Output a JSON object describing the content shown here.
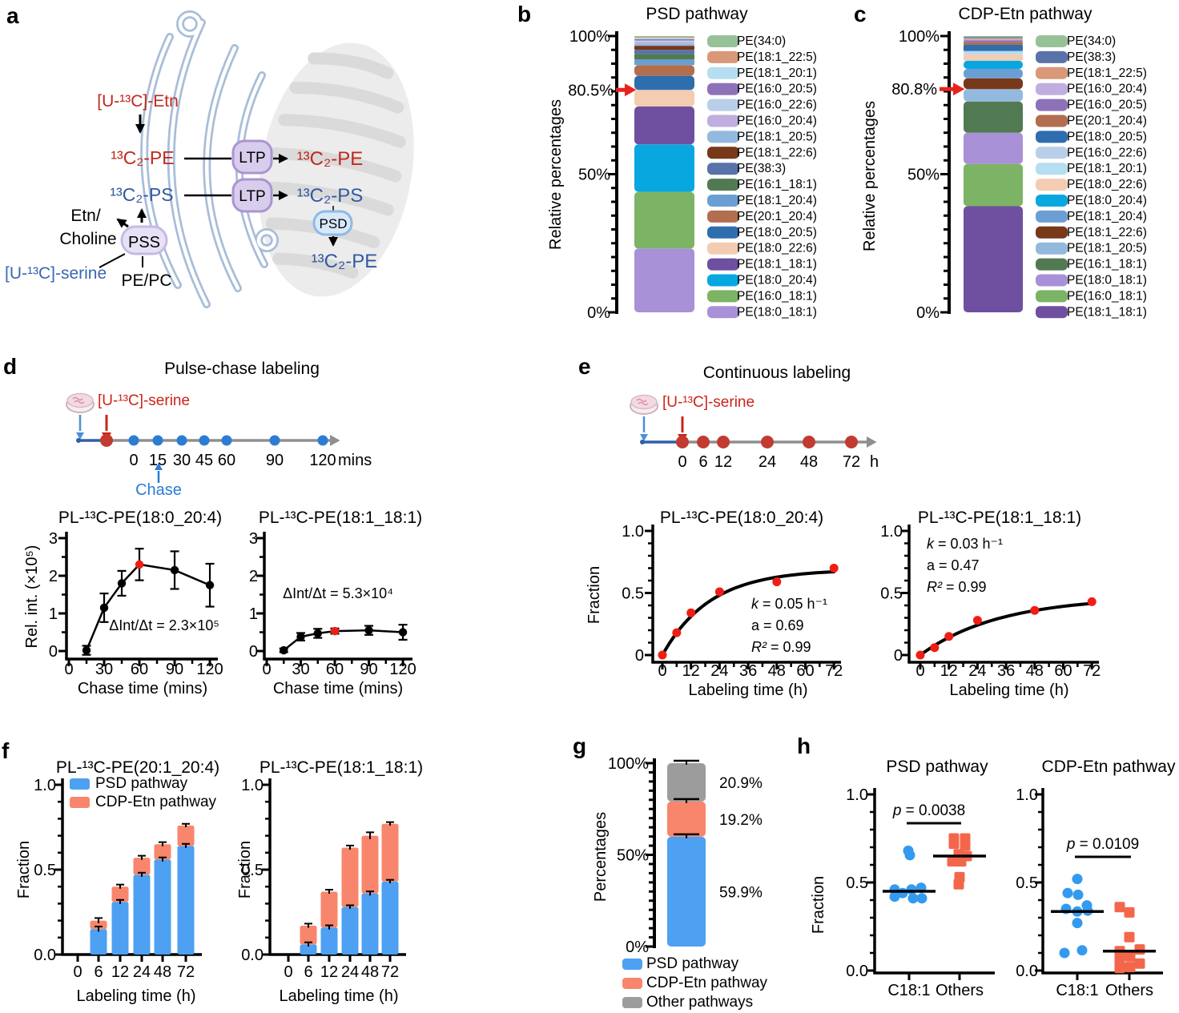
{
  "letters": {
    "a": "a",
    "b": "b",
    "c": "c",
    "d": "d",
    "e": "e",
    "f": "f",
    "g": "g",
    "h": "h"
  },
  "panel_a": {
    "labels": {
      "etn_substrate": "[U-¹³C]-Etn",
      "pe_er": "¹³C₂-PE",
      "ps_er": "¹³C₂-PS",
      "etn_out_1": "Etn/",
      "etn_out_2": "Choline",
      "pss_enzyme": "PSS",
      "serine_substrate": "[U-¹³C]-serine",
      "pe_pc": "PE/PC",
      "ltp_top": "LTP",
      "ltp_bottom": "LTP",
      "pe_mito": "¹³C₂-PE",
      "ps_mito": "¹³C₂-PS",
      "psd_enzyme": "PSD",
      "pe_mito_product": "¹³C₂-PE"
    },
    "colors": {
      "red": "#c0291e",
      "blue": "#33599f",
      "serine_blue": "#3a67b1"
    }
  },
  "timelines": {
    "pulse_chase": {
      "title": "Pulse-chase labeling",
      "reagent": "[U-¹³C]-serine",
      "chase_label": "Chase",
      "tick_labels": [
        "0",
        "15",
        "30",
        "45",
        "60",
        "90",
        "120"
      ],
      "unit": "mins"
    },
    "continuous": {
      "title": "Continuous labeling",
      "reagent": "[U-¹³C]-serine",
      "tick_labels": [
        "0",
        "6",
        "12",
        "24",
        "48",
        "72"
      ],
      "unit": "h"
    }
  },
  "chart_data": [
    {
      "id": "panel_b",
      "type": "bar",
      "variant": "stacked_single",
      "title": "PSD pathway",
      "ylabel": "Relative percentages",
      "yticks": [
        "0%",
        "50%",
        "100%"
      ],
      "arrow": {
        "value": 80.5,
        "label": "80.5%",
        "color": "#e8231c"
      },
      "segments_bottom_to_top": [
        {
          "label": "PE(18:0_18:1)",
          "value": 23.1,
          "color": "#a891d6"
        },
        {
          "label": "PE(16:0_18:1)",
          "value": 20.5,
          "color": "#7cb364"
        },
        {
          "label": "PE(18:0_20:4)",
          "value": 17.2,
          "color": "#08a7e0"
        },
        {
          "label": "PE(18:1_18:1)",
          "value": 13.7,
          "color": "#6f4f9f"
        },
        {
          "label": "PE(18:0_22:6)",
          "value": 6.0,
          "color": "#f3ccb1"
        },
        {
          "label": "PE(18:0_20:5)",
          "value": 5.1,
          "color": "#2e6eae"
        },
        {
          "label": "PE(20:1_20:4)",
          "value": 3.9,
          "color": "#b26e4e"
        },
        {
          "label": "PE(18:1_20:4)",
          "value": 2.0,
          "color": "#6b9fd4"
        },
        {
          "label": "PE(16:1_18:1)",
          "value": 2.0,
          "color": "#527a52"
        },
        {
          "label": "PE(38:3)",
          "value": 1.5,
          "color": "#5a72aa"
        },
        {
          "label": "PE(18:1_22:6)",
          "value": 1.5,
          "color": "#77391a"
        },
        {
          "label": "PE(18:1_20:5)",
          "value": 0.8,
          "color": "#93bade"
        },
        {
          "label": "PE(16:0_20:4)",
          "value": 0.6,
          "color": "#bfaede"
        },
        {
          "label": "PE(16:0_22:6)",
          "value": 0.5,
          "color": "#b9cfe9"
        },
        {
          "label": "PE(16:0_20:5)",
          "value": 0.5,
          "color": "#8d72b8"
        },
        {
          "label": "PE(18:1_20:1)",
          "value": 0.4,
          "color": "#b5dff0"
        },
        {
          "label": "PE(18:1_22:5)",
          "value": 0.4,
          "color": "#d99878"
        },
        {
          "label": "PE(34:0)",
          "value": 0.3,
          "color": "#97c297"
        }
      ]
    },
    {
      "id": "panel_c",
      "type": "bar",
      "variant": "stacked_single",
      "title": "CDP-Etn pathway",
      "ylabel": "Relative percentages",
      "yticks": [
        "0%",
        "50%",
        "100%"
      ],
      "arrow": {
        "value": 80.8,
        "label": "80.8%",
        "color": "#e8231c"
      },
      "segments_bottom_to_top": [
        {
          "label": "PE(18:1_18:1)",
          "value": 38.4,
          "color": "#6f4f9f"
        },
        {
          "label": "PE(16:0_18:1)",
          "value": 15.3,
          "color": "#7cb364"
        },
        {
          "label": "PE(18:0_18:1)",
          "value": 11.3,
          "color": "#a891d6"
        },
        {
          "label": "PE(16:1_18:1)",
          "value": 11.3,
          "color": "#527a52"
        },
        {
          "label": "PE(18:1_20:5)",
          "value": 4.5,
          "color": "#93bade"
        },
        {
          "label": "PE(18:1_22:6)",
          "value": 3.9,
          "color": "#77391a"
        },
        {
          "label": "PE(18:1_20:4)",
          "value": 3.4,
          "color": "#6b9fd4"
        },
        {
          "label": "PE(18:0_20:4)",
          "value": 3.0,
          "color": "#08a7e0"
        },
        {
          "label": "PE(18:0_22:6)",
          "value": 2.2,
          "color": "#f3ccb1"
        },
        {
          "label": "PE(18:1_20:1)",
          "value": 0.8,
          "color": "#b5dff0"
        },
        {
          "label": "PE(16:0_22:6)",
          "value": 0.5,
          "color": "#b9cfe9"
        },
        {
          "label": "PE(18:0_20:5)",
          "value": 2.2,
          "color": "#2e6eae"
        },
        {
          "label": "PE(20:1_20:4)",
          "value": 1.0,
          "color": "#b26e4e"
        },
        {
          "label": "PE(16:0_20:5)",
          "value": 0.6,
          "color": "#8d72b8"
        },
        {
          "label": "PE(16:0_20:4)",
          "value": 0.5,
          "color": "#bfaede"
        },
        {
          "label": "PE(18:1_22:5)",
          "value": 0.4,
          "color": "#d99878"
        },
        {
          "label": "PE(38:3)",
          "value": 0.4,
          "color": "#5a72aa"
        },
        {
          "label": "PE(34:0)",
          "value": 0.3,
          "color": "#97c297"
        }
      ]
    },
    {
      "id": "panel_d_left",
      "type": "line",
      "title": "PL-¹³C-PE(18:0_20:4)",
      "ylabel": "Rel. int. (×10⁵)",
      "xlabel": "Chase time (mins)",
      "xticks": [
        0,
        30,
        60,
        90,
        120
      ],
      "yticks": [
        0,
        1,
        2,
        3
      ],
      "ylim": [
        0,
        3
      ],
      "x": [
        15,
        30,
        45,
        60,
        90,
        120
      ],
      "y": [
        0.02,
        1.15,
        1.8,
        2.3,
        2.15,
        1.75
      ],
      "err": [
        0.12,
        0.38,
        0.33,
        0.42,
        0.5,
        0.57
      ],
      "highlight_index": 3,
      "annotation": "ΔInt/Δt = 2.3×10⁵"
    },
    {
      "id": "panel_d_right",
      "type": "line",
      "title": "PL-¹³C-PE(18:1_18:1)",
      "ylabel": "",
      "xlabel": "Chase time (mins)",
      "xticks": [
        0,
        30,
        60,
        90,
        120
      ],
      "yticks": [
        0,
        1,
        2,
        3
      ],
      "ylim": [
        0,
        3
      ],
      "x": [
        15,
        30,
        45,
        60,
        90,
        120
      ],
      "y": [
        0.02,
        0.38,
        0.47,
        0.53,
        0.55,
        0.5
      ],
      "err": [
        0.05,
        0.1,
        0.12,
        0.07,
        0.12,
        0.2
      ],
      "highlight_index": 3,
      "annotation": "ΔInt/Δt = 5.3×10⁴"
    },
    {
      "id": "panel_e_left",
      "type": "scatter_fit",
      "title": "PL-¹³C-PE(18:0_20:4)",
      "ylabel": "Fraction",
      "xlabel": "Labeling time (h)",
      "xticks": [
        0,
        12,
        24,
        36,
        48,
        60,
        72
      ],
      "ytick_labels": [
        "0",
        "0.5",
        "1.0"
      ],
      "x": [
        0,
        6,
        12,
        24,
        48,
        72
      ],
      "y": [
        0.0,
        0.18,
        0.34,
        0.51,
        0.59,
        0.7
      ],
      "fit": {
        "k": 0.05,
        "a": 0.69
      },
      "annotation_lines": [
        "k = 0.05 h⁻¹",
        "a = 0.69",
        "R² = 0.99"
      ]
    },
    {
      "id": "panel_e_right",
      "type": "scatter_fit",
      "title": "PL-¹³C-PE(18:1_18:1)",
      "ylabel": "",
      "xlabel": "Labeling time (h)",
      "xticks": [
        0,
        12,
        24,
        36,
        48,
        60,
        72
      ],
      "ytick_labels": [
        "0",
        "0.5",
        "1.0"
      ],
      "x": [
        0,
        6,
        12,
        24,
        48,
        72
      ],
      "y": [
        0.0,
        0.06,
        0.15,
        0.28,
        0.36,
        0.43
      ],
      "fit": {
        "k": 0.03,
        "a": 0.47
      },
      "annotation_lines": [
        "k = 0.03 h⁻¹",
        "a = 0.47",
        "R² = 0.99"
      ]
    },
    {
      "id": "panel_f_left",
      "type": "stacked_bars",
      "title": "PL-¹³C-PE(20:1_20:4)",
      "ylabel": "Fraction",
      "xlabel": "Labeling time (h)",
      "categories": [
        "0",
        "6",
        "12",
        "24",
        "48",
        "72"
      ],
      "ytick_labels": [
        "0.0",
        "0.5",
        "1.0"
      ],
      "series": [
        {
          "name": "PSD pathway",
          "color": "#4da0f2",
          "values": [
            0,
            0.15,
            0.31,
            0.47,
            0.56,
            0.64
          ],
          "err": [
            0,
            0.015,
            0.012,
            0.012,
            0.012,
            0.012
          ]
        },
        {
          "name": "CDP-Etn pathway",
          "color": "#f8866c",
          "values": [
            0,
            0.05,
            0.09,
            0.1,
            0.09,
            0.12
          ],
          "err": [
            0,
            0.015,
            0.012,
            0.012,
            0.012,
            0.01
          ]
        }
      ],
      "show_legend": true
    },
    {
      "id": "panel_f_right",
      "type": "stacked_bars",
      "title": "PL-¹³C-PE(18:1_18:1)",
      "ylabel": "Fraction",
      "xlabel": "Labeling time (h)",
      "categories": [
        "0",
        "6",
        "12",
        "24",
        "48",
        "72"
      ],
      "ytick_labels": [
        "0.0",
        "0.5",
        "1.0"
      ],
      "series": [
        {
          "name": "PSD pathway",
          "color": "#4da0f2",
          "values": [
            0,
            0.06,
            0.16,
            0.28,
            0.36,
            0.43
          ],
          "err": [
            0,
            0.012,
            0.012,
            0.01,
            0.012,
            0.01
          ]
        },
        {
          "name": "CDP-Etn pathway",
          "color": "#f8866c",
          "values": [
            0,
            0.11,
            0.21,
            0.35,
            0.34,
            0.34
          ],
          "err": [
            0,
            0.012,
            0.012,
            0.012,
            0.02,
            0.01
          ]
        }
      ],
      "show_legend": false
    },
    {
      "id": "panel_g",
      "type": "bar",
      "variant": "stacked_single",
      "title": "",
      "ylabel": "Percentages",
      "yticks": [
        "0%",
        "50%",
        "100%"
      ],
      "show_value_labels": true,
      "whiskers": true,
      "legend_below": true,
      "segments_bottom_to_top": [
        {
          "name": "PSD pathway",
          "label": "59.9%",
          "value": 59.9,
          "color": "#4da0f2"
        },
        {
          "name": "CDP-Etn pathway",
          "label": "19.2%",
          "value": 19.2,
          "color": "#f8866c"
        },
        {
          "name": "Other pathways",
          "label": "20.9%",
          "value": 20.9,
          "color": "#9c9c9c"
        }
      ]
    },
    {
      "id": "panel_h_left",
      "type": "dot_groups",
      "title": "PSD pathway",
      "ylabel": "Fraction",
      "ytick_labels": [
        "0.0",
        "0.5",
        "1.0"
      ],
      "p_label": "p = 0.0038",
      "groups": [
        {
          "name": "C18:1",
          "marker": "circle",
          "color": "#339af0",
          "median": 0.45,
          "points": [
            [
              -18,
              0.46
            ],
            [
              -18,
              0.42
            ],
            [
              -8,
              0.44
            ],
            [
              -1,
              0.68
            ],
            [
              1,
              0.655
            ],
            [
              3,
              0.46
            ],
            [
              5,
              0.41
            ],
            [
              15,
              0.47
            ],
            [
              16,
              0.41
            ]
          ]
        },
        {
          "name": "Others",
          "marker": "square",
          "color": "#f4664b",
          "median": 0.65,
          "points": [
            [
              -7,
              0.75
            ],
            [
              7,
              0.75
            ],
            [
              -7,
              0.72
            ],
            [
              7,
              0.71
            ],
            [
              -1,
              0.66
            ],
            [
              9,
              0.65
            ],
            [
              -9,
              0.62
            ],
            [
              2,
              0.62
            ],
            [
              0,
              0.53
            ],
            [
              -1,
              0.49
            ]
          ]
        }
      ]
    },
    {
      "id": "panel_h_right",
      "type": "dot_groups",
      "title": "CDP-Etn pathway",
      "ylabel": "",
      "ytick_labels": [
        "0.0",
        "0.5",
        "1.0"
      ],
      "p_label": "p = 0.0109",
      "groups": [
        {
          "name": "C18:1",
          "marker": "circle",
          "color": "#339af0",
          "median": 0.335,
          "points": [
            [
              0,
              0.52
            ],
            [
              -12,
              0.44
            ],
            [
              1,
              0.43
            ],
            [
              -14,
              0.35
            ],
            [
              12,
              0.37
            ],
            [
              0,
              0.335
            ],
            [
              13,
              0.34
            ],
            [
              0,
              0.27
            ],
            [
              6,
              0.115
            ],
            [
              -16,
              0.1
            ]
          ]
        },
        {
          "name": "Others",
          "marker": "square",
          "color": "#f4664b",
          "median": 0.11,
          "points": [
            [
              -12,
              0.36
            ],
            [
              0,
              0.33
            ],
            [
              0,
              0.19
            ],
            [
              -12,
              0.11
            ],
            [
              13,
              0.12
            ],
            [
              -12,
              0.06
            ],
            [
              1,
              0.08
            ],
            [
              13,
              0.04
            ],
            [
              -12,
              0.015
            ],
            [
              1,
              0.02
            ]
          ]
        }
      ]
    }
  ]
}
